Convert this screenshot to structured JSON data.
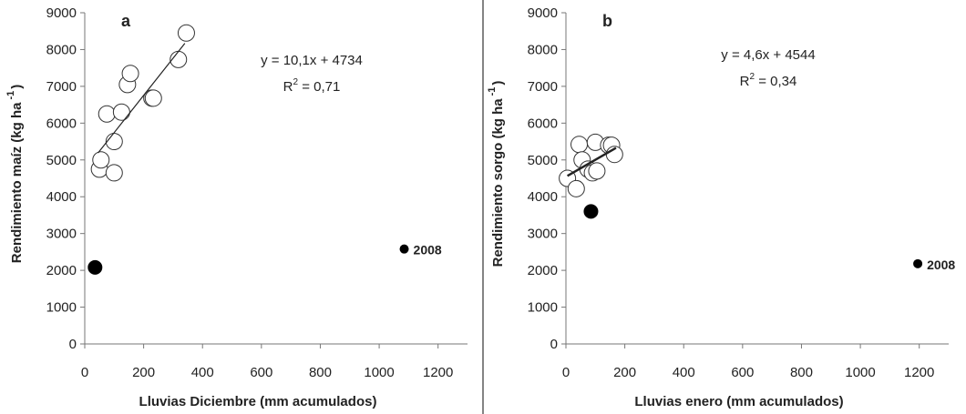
{
  "chart_data": [
    {
      "type": "scatter",
      "panel_label": "a",
      "xlabel": "Lluvias Diciembre (mm acumulados)",
      "ylabel": "Rendimiento maíz (kg ha",
      "ylabel_sup": "-1",
      "ylabel_close": ")",
      "xlim": [
        0,
        1300
      ],
      "ylim": [
        0,
        9000
      ],
      "xticks": [
        0,
        200,
        400,
        600,
        800,
        1000,
        1200
      ],
      "yticks": [
        0,
        1000,
        2000,
        3000,
        4000,
        5000,
        6000,
        7000,
        8000,
        9000
      ],
      "equation": "y = 10,1x + 4734",
      "r2_label": "R",
      "r2_sup": "2",
      "r2_value": " = 0,71",
      "trendline": {
        "slope": 10.1,
        "intercept": 4734,
        "x_range": [
          45,
          340
        ]
      },
      "open_points": [
        {
          "x": 50,
          "y": 4750
        },
        {
          "x": 55,
          "y": 5000
        },
        {
          "x": 100,
          "y": 4650
        },
        {
          "x": 100,
          "y": 5500
        },
        {
          "x": 75,
          "y": 6250
        },
        {
          "x": 125,
          "y": 6300
        },
        {
          "x": 145,
          "y": 7050
        },
        {
          "x": 155,
          "y": 7350
        },
        {
          "x": 228,
          "y": 6680
        },
        {
          "x": 233,
          "y": 6680
        },
        {
          "x": 318,
          "y": 7730
        },
        {
          "x": 345,
          "y": 8450
        }
      ],
      "filled_points": [
        {
          "x": 35,
          "y": 2080,
          "big": true
        },
        {
          "x": 1085,
          "y": 2580,
          "big": false,
          "label": "2008"
        }
      ]
    },
    {
      "type": "scatter",
      "panel_label": "b",
      "xlabel": "Lluvias enero (mm acumulados)",
      "ylabel": "Rendimiento sorgo (kg ha",
      "ylabel_sup": "-1",
      "ylabel_close": ")",
      "xlim": [
        0,
        1300
      ],
      "ylim": [
        0,
        9000
      ],
      "xticks": [
        0,
        200,
        400,
        600,
        800,
        1000,
        1200
      ],
      "yticks": [
        0,
        1000,
        2000,
        3000,
        4000,
        5000,
        6000,
        7000,
        8000,
        9000
      ],
      "equation": "y = 4,6x + 4544",
      "r2_label": "R",
      "r2_sup": "2",
      "r2_value": " = 0,34",
      "trendline": {
        "slope": 4.6,
        "intercept": 4544,
        "x_range": [
          5,
          170
        ]
      },
      "open_points": [
        {
          "x": 5,
          "y": 4500
        },
        {
          "x": 35,
          "y": 4220
        },
        {
          "x": 45,
          "y": 5420
        },
        {
          "x": 55,
          "y": 5000
        },
        {
          "x": 75,
          "y": 4750
        },
        {
          "x": 90,
          "y": 4650
        },
        {
          "x": 100,
          "y": 5480
        },
        {
          "x": 105,
          "y": 4700
        },
        {
          "x": 145,
          "y": 5400
        },
        {
          "x": 155,
          "y": 5400
        },
        {
          "x": 165,
          "y": 5150
        }
      ],
      "filled_points": [
        {
          "x": 85,
          "y": 3600,
          "big": true
        },
        {
          "x": 1195,
          "y": 2180,
          "big": false,
          "label": "2008"
        }
      ]
    }
  ]
}
